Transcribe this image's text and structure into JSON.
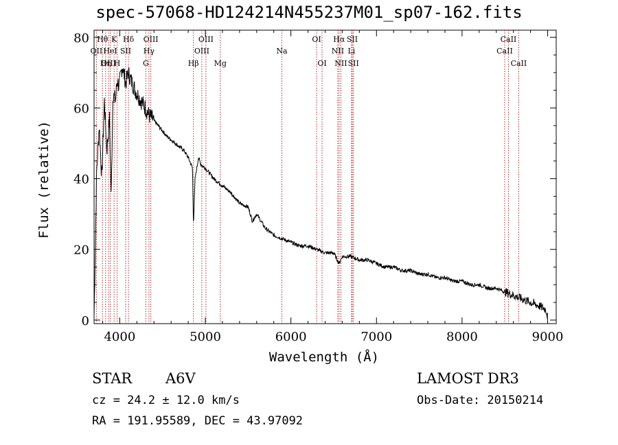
{
  "title": "spec-57068-HD124214N455237M01_sp07-162.fits",
  "chart_data": {
    "type": "line",
    "title": "spec-57068-HD124214N455237M01_sp07-162.fits",
    "xlabel": "Wavelength (Å)",
    "ylabel": "Flux (relative)",
    "xlim": [
      3700,
      9100
    ],
    "ylim": [
      -1,
      82
    ],
    "xticks": [
      4000,
      5000,
      6000,
      7000,
      8000,
      9000
    ],
    "yticks": [
      0,
      20,
      40,
      60,
      80
    ],
    "grid": false,
    "series": [
      {
        "name": "spectrum",
        "x": [
          3700,
          3730,
          3760,
          3790,
          3820,
          3850,
          3880,
          3900,
          3920,
          3950,
          3970,
          3990,
          4030,
          4070,
          4100,
          4130,
          4180,
          4250,
          4300,
          4340,
          4380,
          4450,
          4550,
          4650,
          4750,
          4800,
          4850,
          4861,
          4880,
          4920,
          4950,
          5000,
          5100,
          5200,
          5300,
          5400,
          5500,
          5550,
          5600,
          5700,
          5800,
          5900,
          6000,
          6100,
          6200,
          6300,
          6400,
          6500,
          6563,
          6600,
          6700,
          6800,
          6900,
          7000,
          7100,
          7200,
          7300,
          7400,
          7500,
          7600,
          7700,
          7800,
          7900,
          8000,
          8100,
          8200,
          8300,
          8400,
          8500,
          8600,
          8700,
          8800,
          8900,
          8980,
          9000
        ],
        "y": [
          1,
          42,
          55,
          40,
          62,
          48,
          57,
          35,
          64,
          62,
          68,
          66,
          72,
          67,
          70,
          68,
          65,
          62,
          60,
          58,
          57,
          55,
          52,
          50,
          48,
          46,
          43,
          27,
          40,
          46,
          44,
          43,
          40,
          38,
          36,
          33,
          32,
          28,
          30,
          26,
          24,
          23,
          22,
          21,
          21,
          20,
          19,
          19,
          16,
          18,
          18,
          17,
          17,
          16,
          15,
          15,
          14,
          14,
          13,
          13,
          12,
          12,
          11,
          11,
          10,
          10,
          9,
          9,
          8,
          7,
          6,
          5,
          4,
          3,
          1
        ]
      }
    ],
    "lines": [
      {
        "label": "Hθ",
        "w": 3798,
        "row": 0
      },
      {
        "label": "OII",
        "w": 3727,
        "row": 1
      },
      {
        "label": "OIII",
        "w": 3869,
        "row": 2
      },
      {
        "label": "Hη",
        "w": 3835,
        "row": 2
      },
      {
        "label": "K",
        "w": 3934,
        "row": 0
      },
      {
        "label": "HeI",
        "w": 3889,
        "row": 1
      },
      {
        "label": "H",
        "w": 3969,
        "row": 2
      },
      {
        "label": "Hδ",
        "w": 4102,
        "row": 0
      },
      {
        "label": "SII",
        "w": 4069,
        "row": 1
      },
      {
        "label": "OIII",
        "w": 4363,
        "row": 0
      },
      {
        "label": "Hγ",
        "w": 4341,
        "row": 1
      },
      {
        "label": "G",
        "w": 4305,
        "row": 2
      },
      {
        "label": "OIII",
        "w": 5007,
        "row": 0
      },
      {
        "label": "OIII",
        "w": 4959,
        "row": 1
      },
      {
        "label": "Hβ",
        "w": 4861,
        "row": 2
      },
      {
        "label": "Mg",
        "w": 5175,
        "row": 2
      },
      {
        "label": "Na",
        "w": 5894,
        "row": 1
      },
      {
        "label": "OI",
        "w": 6300,
        "row": 0
      },
      {
        "label": "OI",
        "w": 6364,
        "row": 2
      },
      {
        "label": "Hα",
        "w": 6563,
        "row": 0
      },
      {
        "label": "SII",
        "w": 6717,
        "row": 0
      },
      {
        "label": "NII",
        "w": 6548,
        "row": 1
      },
      {
        "label": "Li",
        "w": 6708,
        "row": 1
      },
      {
        "label": "NII",
        "w": 6584,
        "row": 2
      },
      {
        "label": "SII",
        "w": 6731,
        "row": 2
      },
      {
        "label": "CaII",
        "w": 8542,
        "row": 0
      },
      {
        "label": "CaII",
        "w": 8498,
        "row": 1
      },
      {
        "label": "CaII",
        "w": 8662,
        "row": 2
      }
    ]
  },
  "info": {
    "class": "STAR",
    "subclass": "A6V",
    "survey": "LAMOST DR3",
    "cz": "cz = 24.2 ± 12.0 km/s",
    "obsdate": "Obs-Date: 20150214",
    "radec": "RA = 191.95589, DEC =  43.97092"
  }
}
